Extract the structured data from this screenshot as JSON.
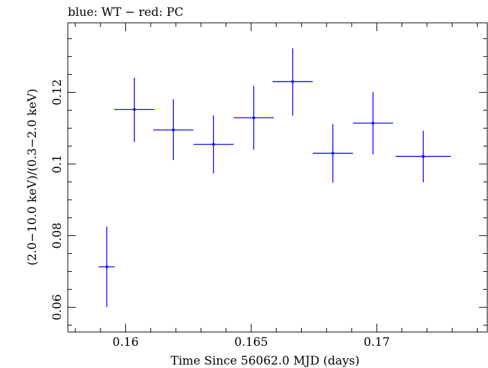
{
  "chart_data": {
    "type": "scatter",
    "title": "blue: WT − red: PC",
    "xlabel": "Time Since 56062.0 MJD (days)",
    "ylabel": "(2.0−10.0 keV)/(0.3−2.0 keV)",
    "xlim": [
      0.1577,
      0.1744
    ],
    "ylim": [
      0.0531,
      0.1394
    ],
    "x_ticks": [
      0.16,
      0.165,
      0.17
    ],
    "x_tick_labels": [
      "0.16",
      "0.165",
      "0.17"
    ],
    "y_ticks": [
      0.06,
      0.08,
      0.1,
      0.12
    ],
    "y_tick_labels": [
      "0.06",
      "0.08",
      "0.1",
      "0.12"
    ],
    "x_minor_step": 0.001,
    "y_minor_step": 0.005,
    "grid": false,
    "series": [
      {
        "color": "#0000ff",
        "points": [
          {
            "x": 0.15925,
            "xerr": 0.00032,
            "y": 0.0713,
            "yerr_low": 0.0112,
            "yerr_high": 0.0112
          },
          {
            "x": 0.16035,
            "xerr": 0.0008,
            "y": 0.1152,
            "yerr_low": 0.0091,
            "yerr_high": 0.0089
          },
          {
            "x": 0.1619,
            "xerr": 0.0008,
            "y": 0.1095,
            "yerr_low": 0.0084,
            "yerr_high": 0.0086
          },
          {
            "x": 0.1635,
            "xerr": 0.0008,
            "y": 0.1055,
            "yerr_low": 0.0081,
            "yerr_high": 0.0081
          },
          {
            "x": 0.1651,
            "xerr": 0.0008,
            "y": 0.1129,
            "yerr_low": 0.0089,
            "yerr_high": 0.0089
          },
          {
            "x": 0.16665,
            "xerr": 0.0008,
            "y": 0.123,
            "yerr_low": 0.0095,
            "yerr_high": 0.0093
          },
          {
            "x": 0.16825,
            "xerr": 0.0008,
            "y": 0.103,
            "yerr_low": 0.0082,
            "yerr_high": 0.0081
          },
          {
            "x": 0.16985,
            "xerr": 0.0008,
            "y": 0.1114,
            "yerr_low": 0.0087,
            "yerr_high": 0.0087
          },
          {
            "x": 0.17185,
            "xerr": 0.0011,
            "y": 0.1021,
            "yerr_low": 0.0072,
            "yerr_high": 0.0072
          }
        ]
      }
    ]
  }
}
